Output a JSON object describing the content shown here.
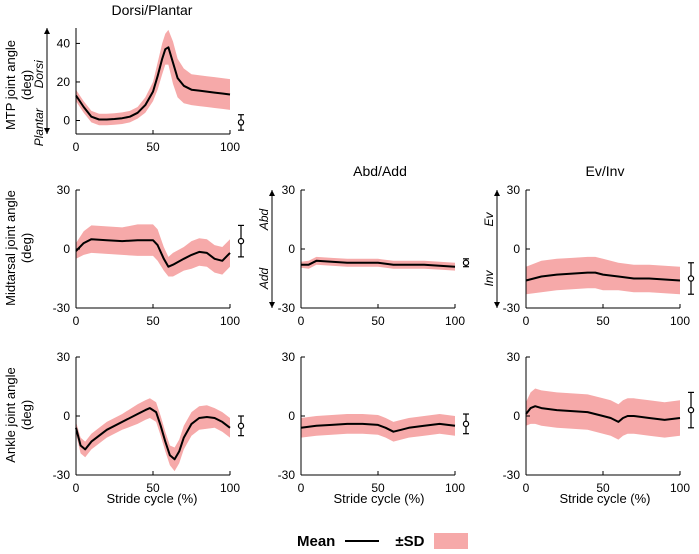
{
  "legend": {
    "mean_label": "Mean",
    "sd_label": "±SD",
    "mean_color": "#000000",
    "sd_color": "#f6a9a9"
  },
  "column_titles": [
    "Dorsi/Plantar",
    "Abd/Add",
    "Ev/Inv"
  ],
  "row_labels": [
    [
      "MTP joint angle",
      "(deg)"
    ],
    [
      "Midtarsal joint angle",
      "(deg)"
    ],
    [
      "Ankle joint angle",
      "(deg)"
    ]
  ],
  "xlabel": "Stride cycle (%)",
  "chart_data": [
    {
      "type": "line",
      "id": "mtp-dorsi",
      "row": 0,
      "col": 0,
      "title": "Dorsi/Plantar",
      "xlim": [
        0,
        100
      ],
      "ylim": [
        -7,
        48
      ],
      "yticks": [
        0,
        20,
        40
      ],
      "xticks": [
        0,
        50,
        100
      ],
      "xlabel": "",
      "ylabel": "MTP joint angle (deg)",
      "direction_labels": [
        "Dorsi",
        "Plantar"
      ],
      "series": [
        {
          "name": "Mean",
          "color": "#000000",
          "x": [
            0,
            5,
            10,
            15,
            20,
            25,
            30,
            35,
            40,
            45,
            50,
            53,
            56,
            58,
            60,
            63,
            66,
            70,
            75,
            80,
            85,
            90,
            95,
            100
          ],
          "y": [
            13,
            7,
            2,
            0.5,
            0.5,
            0.8,
            1.2,
            2,
            4,
            8,
            15,
            23,
            32,
            37,
            38,
            30,
            22,
            18,
            16,
            15.5,
            15,
            14.5,
            14,
            13.5
          ],
          "sd": [
            3,
            3,
            3,
            3,
            3,
            3,
            3,
            3,
            3,
            4,
            5,
            7,
            8,
            8,
            9,
            11,
            10,
            9,
            8,
            8,
            8,
            8,
            8,
            8
          ]
        }
      ],
      "errorbar": {
        "mean": -1,
        "sd": 4
      }
    },
    {
      "type": "line",
      "id": "midtarsal-dorsi",
      "row": 1,
      "col": 0,
      "xlim": [
        0,
        100
      ],
      "ylim": [
        -30,
        30
      ],
      "yticks": [
        -30,
        0,
        30
      ],
      "xticks": [
        0,
        50,
        100
      ],
      "xlabel": "",
      "ylabel": "Midtarsal joint angle (deg)",
      "series": [
        {
          "name": "Mean",
          "color": "#000000",
          "x": [
            0,
            5,
            10,
            20,
            30,
            40,
            50,
            53,
            57,
            60,
            63,
            70,
            75,
            80,
            85,
            90,
            95,
            100
          ],
          "y": [
            -1,
            3,
            5,
            4.5,
            4,
            4.5,
            4.5,
            2,
            -5,
            -9,
            -8,
            -5,
            -3,
            -1.5,
            -2,
            -5,
            -6,
            -2
          ],
          "sd": [
            4,
            6,
            7,
            7,
            7,
            8,
            8,
            8,
            6,
            5,
            6,
            6,
            7,
            7,
            7,
            7,
            7,
            7
          ]
        }
      ],
      "errorbar": {
        "mean": 4,
        "sd": 8
      }
    },
    {
      "type": "line",
      "id": "midtarsal-abd",
      "row": 1,
      "col": 1,
      "title": "Abd/Add",
      "xlim": [
        0,
        100
      ],
      "ylim": [
        -30,
        30
      ],
      "yticks": [
        -30,
        0,
        30
      ],
      "xticks": [
        0,
        50,
        100
      ],
      "xlabel": "",
      "ylabel": "",
      "direction_labels": [
        "Abd",
        "Add"
      ],
      "series": [
        {
          "name": "Mean",
          "color": "#000000",
          "x": [
            0,
            5,
            10,
            20,
            30,
            40,
            50,
            60,
            70,
            80,
            90,
            100
          ],
          "y": [
            -8,
            -8,
            -6,
            -6.5,
            -7,
            -7,
            -7,
            -8,
            -8,
            -8,
            -8.5,
            -9
          ],
          "sd": [
            1.5,
            2,
            2,
            2,
            2,
            2,
            2,
            2,
            2,
            2,
            2,
            2
          ]
        }
      ],
      "errorbar": {
        "mean": -7,
        "sd": 2
      }
    },
    {
      "type": "line",
      "id": "midtarsal-ev",
      "row": 1,
      "col": 2,
      "title": "Ev/Inv",
      "xlim": [
        0,
        100
      ],
      "ylim": [
        -30,
        30
      ],
      "yticks": [
        -30,
        0,
        30
      ],
      "xticks": [
        0,
        50,
        100
      ],
      "xlabel": "",
      "ylabel": "",
      "direction_labels": [
        "Ev",
        "Inv"
      ],
      "series": [
        {
          "name": "Mean",
          "color": "#000000",
          "x": [
            0,
            10,
            20,
            30,
            40,
            45,
            50,
            60,
            70,
            80,
            90,
            100
          ],
          "y": [
            -16,
            -14,
            -13,
            -12.5,
            -12,
            -12,
            -13,
            -14,
            -15,
            -15,
            -15.5,
            -16
          ],
          "sd": [
            7,
            8,
            8,
            8,
            8,
            8,
            8,
            7,
            7,
            7,
            7,
            7
          ]
        }
      ],
      "errorbar": {
        "mean": -15,
        "sd": 8
      }
    },
    {
      "type": "line",
      "id": "ankle-dorsi",
      "row": 2,
      "col": 0,
      "xlim": [
        0,
        100
      ],
      "ylim": [
        -30,
        30
      ],
      "yticks": [
        -30,
        0,
        30
      ],
      "xticks": [
        0,
        50,
        100
      ],
      "xlabel": "Stride cycle (%)",
      "ylabel": "Ankle joint angle (deg)",
      "series": [
        {
          "name": "Mean",
          "color": "#000000",
          "x": [
            0,
            3,
            6,
            10,
            15,
            20,
            30,
            40,
            45,
            48,
            52,
            55,
            58,
            61,
            64,
            67,
            70,
            75,
            80,
            85,
            90,
            95,
            100
          ],
          "y": [
            -6,
            -15,
            -17,
            -13,
            -10,
            -7,
            -3,
            1,
            3,
            4,
            2,
            -5,
            -13,
            -20,
            -22,
            -18,
            -11,
            -4,
            -1,
            -0.5,
            -1,
            -3,
            -6
          ],
          "sd": [
            3,
            4,
            4,
            4,
            4,
            4,
            4,
            5,
            5,
            5,
            5,
            5,
            5,
            5,
            6,
            6,
            6,
            6,
            6,
            6,
            5,
            5,
            5
          ]
        }
      ],
      "errorbar": {
        "mean": -5,
        "sd": 5
      }
    },
    {
      "type": "line",
      "id": "ankle-abd",
      "row": 2,
      "col": 1,
      "xlim": [
        0,
        100
      ],
      "ylim": [
        -30,
        30
      ],
      "yticks": [
        -30,
        0,
        30
      ],
      "xticks": [
        0,
        50,
        100
      ],
      "xlabel": "Stride cycle (%)",
      "ylabel": "",
      "series": [
        {
          "name": "Mean",
          "color": "#000000",
          "x": [
            0,
            10,
            20,
            30,
            40,
            50,
            55,
            60,
            65,
            70,
            80,
            90,
            100
          ],
          "y": [
            -6,
            -5,
            -4.5,
            -4,
            -4,
            -4.5,
            -6,
            -8,
            -7,
            -6,
            -5,
            -4,
            -5
          ],
          "sd": [
            5,
            5,
            5,
            5,
            5,
            5,
            5,
            5,
            5,
            5,
            5,
            5,
            5
          ]
        }
      ],
      "errorbar": {
        "mean": -4,
        "sd": 5
      }
    },
    {
      "type": "line",
      "id": "ankle-ev",
      "row": 2,
      "col": 2,
      "xlim": [
        0,
        100
      ],
      "ylim": [
        -30,
        30
      ],
      "yticks": [
        -30,
        0,
        30
      ],
      "xticks": [
        0,
        50,
        100
      ],
      "xlabel": "Stride cycle (%)",
      "ylabel": "",
      "series": [
        {
          "name": "Mean",
          "color": "#000000",
          "x": [
            0,
            3,
            6,
            10,
            20,
            30,
            40,
            50,
            55,
            60,
            63,
            66,
            70,
            80,
            90,
            100
          ],
          "y": [
            1,
            4,
            5,
            4,
            3,
            2.5,
            2,
            0,
            -1,
            -3,
            -1,
            0,
            0,
            -1,
            -2,
            -1
          ],
          "sd": [
            6,
            8,
            9,
            9,
            9,
            9,
            9,
            9,
            9,
            9,
            9,
            9,
            9,
            9,
            9,
            9
          ]
        }
      ],
      "errorbar": {
        "mean": 3,
        "sd": 9
      }
    }
  ]
}
